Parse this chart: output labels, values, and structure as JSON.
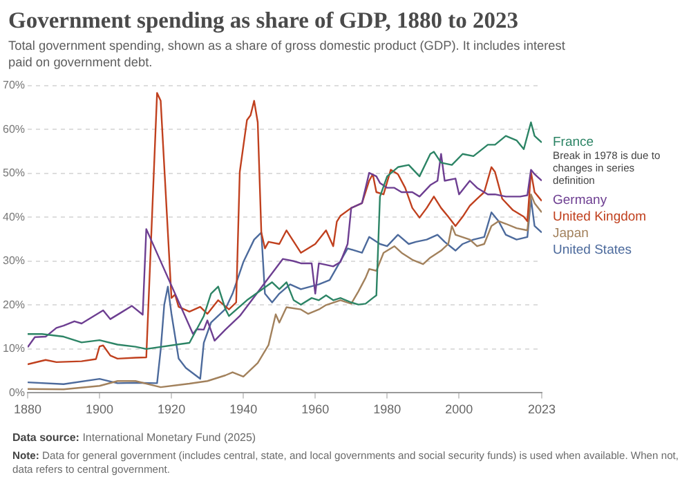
{
  "chart_data": {
    "type": "line",
    "title": "Government spending as share of GDP, 1880 to 2023",
    "subtitle": "Total government spending, shown as a share of gross domestic product (GDP). It includes interest paid on government debt.",
    "annotations": [
      "Break in 1978 is due to changes in series definition",
      "Data source: International Monetary Fund (2025)",
      "Note: Data for general government (includes central, state, and local governments and social security funds) is used when available. When not, data refers to central government."
    ],
    "xlim": [
      1880,
      2023
    ],
    "xticks": [
      1880,
      1900,
      1920,
      1940,
      1960,
      1980,
      2000,
      2023
    ],
    "ylim": [
      0,
      70
    ],
    "yticks": [
      {
        "value": 0,
        "label": "0%"
      },
      {
        "value": 10,
        "label": "10%"
      },
      {
        "value": 20,
        "label": "20%"
      },
      {
        "value": 30,
        "label": "30%"
      },
      {
        "value": 40,
        "label": "40%"
      },
      {
        "value": 50,
        "label": "50%"
      },
      {
        "value": 60,
        "label": "60%"
      },
      {
        "value": 70,
        "label": "70%"
      }
    ],
    "grid": "y",
    "legend": false,
    "marker": "none",
    "line_style": "solid",
    "series": [
      {
        "name": "France",
        "color": "#2c8465",
        "x": [
          1880,
          1884,
          1890,
          1895,
          1900,
          1905,
          1910,
          1913,
          1925,
          1929,
          1931,
          1933,
          1935,
          1936,
          1941,
          1948,
          1950,
          1952,
          1954,
          1956,
          1959,
          1961,
          1963,
          1965,
          1967,
          1970,
          1972,
          1974,
          1976,
          1977,
          1978,
          1980,
          1983,
          1986,
          1989,
          1992,
          1993,
          1995,
          1998,
          2001,
          2004,
          2008,
          2010,
          2013,
          2016,
          2018,
          2020,
          2021,
          2023
        ],
        "values": [
          13.4,
          13.4,
          12.8,
          11.5,
          12,
          11,
          10.5,
          10,
          11.4,
          17.5,
          22.6,
          24.2,
          19.1,
          17.5,
          21.1,
          25.2,
          23.6,
          25.2,
          21.1,
          20.1,
          21.6,
          21.1,
          22.2,
          21.1,
          21.6,
          20.6,
          20.1,
          20.3,
          21.6,
          22.2,
          44.7,
          49.3,
          51.4,
          51.9,
          49.3,
          54.4,
          54.9,
          52.4,
          51.9,
          54.4,
          53.9,
          56.5,
          56.5,
          58.5,
          57.5,
          55.5,
          61.6,
          58.5,
          57
        ]
      },
      {
        "name": "Germany",
        "color": "#6d3e91",
        "x": [
          1880,
          1882,
          1885,
          1888,
          1890,
          1893,
          1895,
          1898,
          1901,
          1903,
          1906,
          1909,
          1912,
          1913,
          1926,
          1927,
          1929,
          1930,
          1932,
          1935,
          1939,
          1951,
          1954,
          1956,
          1959,
          1960,
          1961,
          1965,
          1967,
          1969,
          1970,
          1973,
          1975,
          1977,
          1978,
          1980,
          1982,
          1984,
          1987,
          1989,
          1992,
          1994,
          1995,
          1996,
          1999,
          2000,
          2003,
          2005,
          2008,
          2010,
          2013,
          2017,
          2019,
          2020,
          2021,
          2023
        ],
        "values": [
          10.4,
          12.7,
          12.8,
          14.8,
          15.3,
          16.3,
          15.8,
          17.3,
          18.8,
          16.8,
          18.3,
          19.8,
          17.8,
          37.3,
          13.4,
          14.5,
          14.4,
          16.5,
          11.9,
          14.4,
          17.5,
          30.5,
          30,
          29.5,
          29.5,
          22.6,
          29.5,
          28.8,
          29.8,
          33.9,
          42.1,
          43.2,
          50.1,
          49.3,
          47.8,
          46.7,
          46.7,
          45.7,
          45.7,
          44.7,
          47.3,
          48.3,
          54.4,
          48.3,
          48.8,
          45.2,
          48.3,
          46.7,
          45.2,
          45.2,
          44.7,
          44.7,
          45,
          50.8,
          49.8,
          48.3
        ]
      },
      {
        "name": "United Kingdom",
        "color": "#c0401e",
        "x": [
          1880,
          1883,
          1885,
          1888,
          1895,
          1899,
          1900,
          1901,
          1903,
          1905,
          1910,
          1913,
          1916,
          1917,
          1920,
          1921,
          1922,
          1925,
          1928,
          1930,
          1933,
          1936,
          1938,
          1939,
          1941,
          1942,
          1943,
          1944,
          1945,
          1946,
          1947,
          1950,
          1952,
          1956,
          1960,
          1963,
          1965,
          1966,
          1967,
          1970,
          1973,
          1975,
          1976,
          1977,
          1979,
          1981,
          1983,
          1985,
          1987,
          1989,
          1991,
          1993,
          1995,
          1997,
          1999,
          2001,
          2003,
          2005,
          2007,
          2009,
          2010,
          2012,
          2015,
          2018,
          2019,
          2020,
          2021,
          2023
        ],
        "values": [
          6.5,
          7.1,
          7.5,
          7,
          7.2,
          7.7,
          10.6,
          10.8,
          8.5,
          7.8,
          8,
          8.1,
          68.3,
          66.5,
          21.6,
          22.4,
          19.6,
          18.5,
          19.6,
          18,
          21.1,
          19,
          20.6,
          50.3,
          62.1,
          63.2,
          66.5,
          61.6,
          36.5,
          32.9,
          34.4,
          33.9,
          37,
          31.9,
          33.9,
          37,
          33.4,
          39,
          40.3,
          42.1,
          43.2,
          48.3,
          49.8,
          45.7,
          45.2,
          50.8,
          49.8,
          46.7,
          42.1,
          39.9,
          42.1,
          44.7,
          42.1,
          40.1,
          38,
          40.1,
          42.6,
          44.2,
          45.7,
          51.4,
          50.3,
          44.2,
          41.6,
          40.1,
          39.1,
          50.3,
          45.7,
          43.7
        ]
      },
      {
        "name": "Japan",
        "color": "#a2815c",
        "x": [
          1880,
          1890,
          1900,
          1905,
          1910,
          1917,
          1925,
          1930,
          1935,
          1937,
          1940,
          1944,
          1947,
          1949,
          1950,
          1952,
          1956,
          1958,
          1961,
          1963,
          1967,
          1970,
          1972,
          1974,
          1975,
          1977,
          1979,
          1982,
          1984,
          1987,
          1990,
          1992,
          1995,
          1997,
          1998,
          1999,
          2003,
          2005,
          2007,
          2009,
          2011,
          2013,
          2016,
          2019,
          2020,
          2021,
          2023
        ],
        "values": [
          0.9,
          0.8,
          1.6,
          2.7,
          2.7,
          1.3,
          2.1,
          2.7,
          4,
          4.7,
          3.7,
          6.8,
          10.9,
          17.9,
          16,
          19.5,
          19,
          18,
          19,
          20,
          21.1,
          20.3,
          23.1,
          26.2,
          28.2,
          27.8,
          31.9,
          33.4,
          31.9,
          30.3,
          29.3,
          30.8,
          32.4,
          33.9,
          38,
          36,
          34.9,
          33.4,
          33.9,
          38,
          39.1,
          38.5,
          37.5,
          37,
          45.2,
          43.2,
          41.1
        ]
      },
      {
        "name": "United States",
        "color": "#4c6a9c",
        "x": [
          1880,
          1890,
          1900,
          1905,
          1910,
          1916,
          1917,
          1918,
          1919,
          1920,
          1922,
          1924,
          1928,
          1929,
          1931,
          1935,
          1937,
          1940,
          1943,
          1945,
          1946,
          1948,
          1950,
          1953,
          1956,
          1961,
          1964,
          1969,
          1973,
          1975,
          1978,
          1980,
          1983,
          1986,
          1988,
          1991,
          1994,
          1996,
          1999,
          2001,
          2004,
          2007,
          2009,
          2011,
          2013,
          2016,
          2019,
          2020,
          2021,
          2023
        ],
        "values": [
          2.4,
          2,
          3.2,
          2.2,
          2.3,
          2.2,
          9.8,
          20.1,
          24.2,
          18,
          7.8,
          5.7,
          3.2,
          11.4,
          16,
          19.1,
          22.6,
          29.8,
          34.9,
          36.5,
          22.6,
          20.6,
          22.6,
          24.7,
          23.6,
          24.7,
          25.7,
          32.9,
          31.9,
          35.5,
          33.9,
          33.4,
          36,
          33.9,
          34.4,
          34.9,
          36,
          34.4,
          32.4,
          33.9,
          34.9,
          35.5,
          41.1,
          39.1,
          36,
          34.9,
          35.5,
          44.2,
          38,
          36.5
        ]
      }
    ]
  }
}
